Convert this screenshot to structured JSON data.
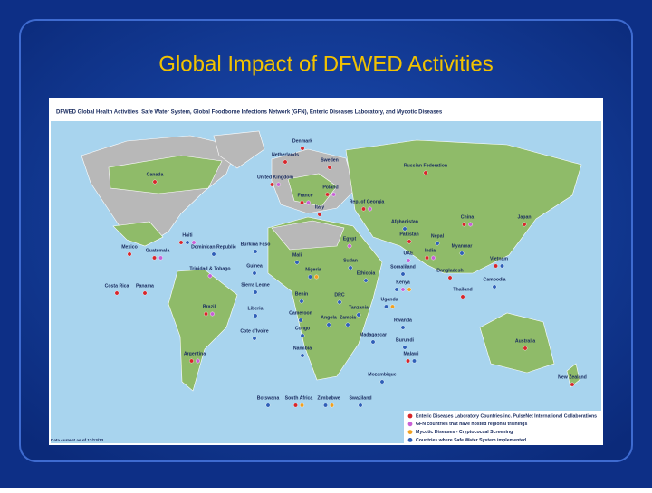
{
  "title": "Global Impact of DFWED Activities",
  "map": {
    "heading": "DFWED Global Health Activities: Safe Water System, Global Foodborne Infections Network (GFN), Enteric Diseases Laboratory, and Mycotic Diseases",
    "countries": [
      "Denmark",
      "Netherlands",
      "Sweden",
      "United Kingdom",
      "Russian Federation",
      "Canada",
      "Poland",
      "France",
      "Rep. of Georgia",
      "Italy",
      "China",
      "Japan",
      "Afghanistan",
      "Haiti",
      "Dominican Republic",
      "Egypt",
      "Pakistan",
      "Nepal",
      "Burkina Faso",
      "Mexico",
      "Guatemala",
      "UAE",
      "Myanmar",
      "Mali",
      "Sudan",
      "India",
      "Vietnam",
      "Trinidad & Tobago",
      "Guinea",
      "Nigeria",
      "Somaliland",
      "Bangladesh",
      "Ethiopia",
      "Cambodia",
      "Sierra Leone",
      "Costa Rica",
      "Panama",
      "Thailand",
      "Kenya",
      "Benin",
      "DRC",
      "Uganda",
      "Brazil",
      "Liberia",
      "Tanzania",
      "Cameroon",
      "Angola",
      "Zambia",
      "Rwanda",
      "Congo",
      "Cote d'Ivoire",
      "Madagascar",
      "Burundi",
      "Australia",
      "Argentina",
      "Namibia",
      "Malawi",
      "New Zealand",
      "Mozambique",
      "Botswana",
      "South Africa",
      "Zimbabwe",
      "Swaziland"
    ],
    "legend": [
      "Enteric Diseases Laboratory Countries inc. PulseNet International Collaborations",
      "GFN countries that have hosted regional trainings",
      "Mycotic Diseases - Cryptococcal Screening",
      "Countries where Safe Water System implemented"
    ],
    "legend_colors": [
      "#d7262b",
      "#c85fd6",
      "#f0a020",
      "#2f5fb8"
    ],
    "footnote": "Data current as of 12/13/13"
  }
}
